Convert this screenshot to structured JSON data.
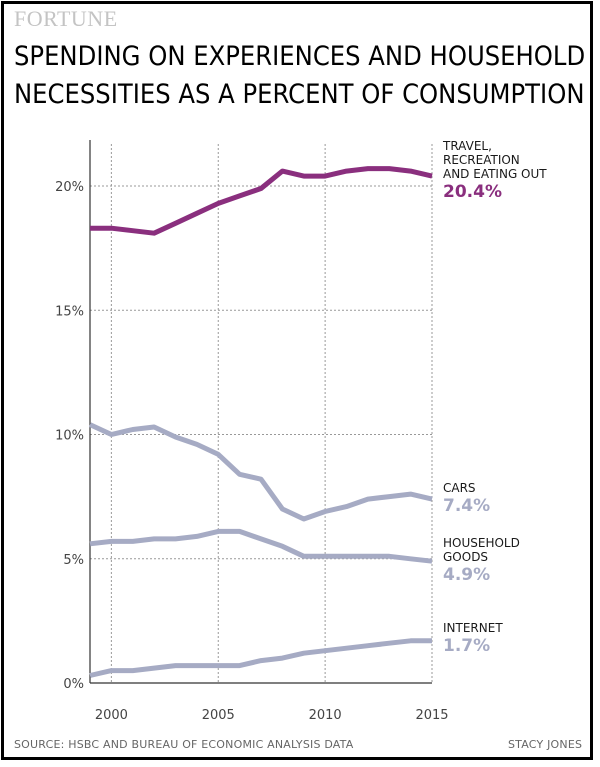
{
  "brand": "FORTUNE",
  "title_line1": "SPENDING ON EXPERIENCES AND HOUSEHOLD",
  "title_line2": "NECESSITIES AS A PERCENT OF CONSUMPTION",
  "source": "SOURCE: HSBC AND BUREAU OF ECONOMIC ANALYSIS DATA",
  "credit": "STACY JONES",
  "colors": {
    "purple": "#8a2f7e",
    "gray": "#a6abc4",
    "grid": "#999999"
  },
  "chart_data": {
    "type": "line",
    "title": "SPENDING ON EXPERIENCES AND HOUSEHOLD NECESSITIES AS A PERCENT OF CONSUMPTION",
    "x": [
      1999,
      2000,
      2001,
      2002,
      2003,
      2004,
      2005,
      2006,
      2007,
      2008,
      2009,
      2010,
      2011,
      2012,
      2013,
      2014,
      2015
    ],
    "xlim": [
      1999,
      2015
    ],
    "ylim": [
      0,
      22
    ],
    "x_ticks": [
      2000,
      2005,
      2010,
      2015
    ],
    "x_tick_labels": [
      "2000",
      "2005",
      "2010",
      "2015"
    ],
    "y_ticks": [
      0,
      5,
      10,
      15,
      20
    ],
    "y_tick_labels": [
      "0%",
      "5%",
      "10%",
      "15%",
      "20%"
    ],
    "grid": true,
    "series": [
      {
        "name": "TRAVEL, RECREATION AND EATING OUT",
        "label_lines": [
          "TRAVEL,",
          "RECREATION",
          "AND EATING OUT"
        ],
        "value_label": "20.4%",
        "color": "#8a2f7e",
        "values": [
          18.3,
          18.3,
          18.2,
          18.1,
          18.5,
          18.9,
          19.3,
          19.6,
          19.9,
          20.6,
          20.4,
          20.4,
          20.6,
          20.7,
          20.7,
          20.6,
          20.4
        ]
      },
      {
        "name": "CARS",
        "label_lines": [
          "CARS"
        ],
        "value_label": "7.4%",
        "color": "#a6abc4",
        "values": [
          10.4,
          10.0,
          10.2,
          10.3,
          9.9,
          9.6,
          9.2,
          8.4,
          8.2,
          7.0,
          6.6,
          6.9,
          7.1,
          7.4,
          7.5,
          7.6,
          7.4
        ]
      },
      {
        "name": "HOUSEHOLD GOODS",
        "label_lines": [
          "HOUSEHOLD",
          "GOODS"
        ],
        "value_label": "4.9%",
        "color": "#a6abc4",
        "values": [
          5.6,
          5.7,
          5.7,
          5.8,
          5.8,
          5.9,
          6.1,
          6.1,
          5.8,
          5.5,
          5.1,
          5.1,
          5.1,
          5.1,
          5.1,
          5.0,
          4.9
        ]
      },
      {
        "name": "INTERNET",
        "label_lines": [
          "INTERNET"
        ],
        "value_label": "1.7%",
        "color": "#a6abc4",
        "values": [
          0.3,
          0.5,
          0.5,
          0.6,
          0.7,
          0.7,
          0.7,
          0.7,
          0.9,
          1.0,
          1.2,
          1.3,
          1.4,
          1.5,
          1.6,
          1.7,
          1.7
        ]
      }
    ]
  }
}
